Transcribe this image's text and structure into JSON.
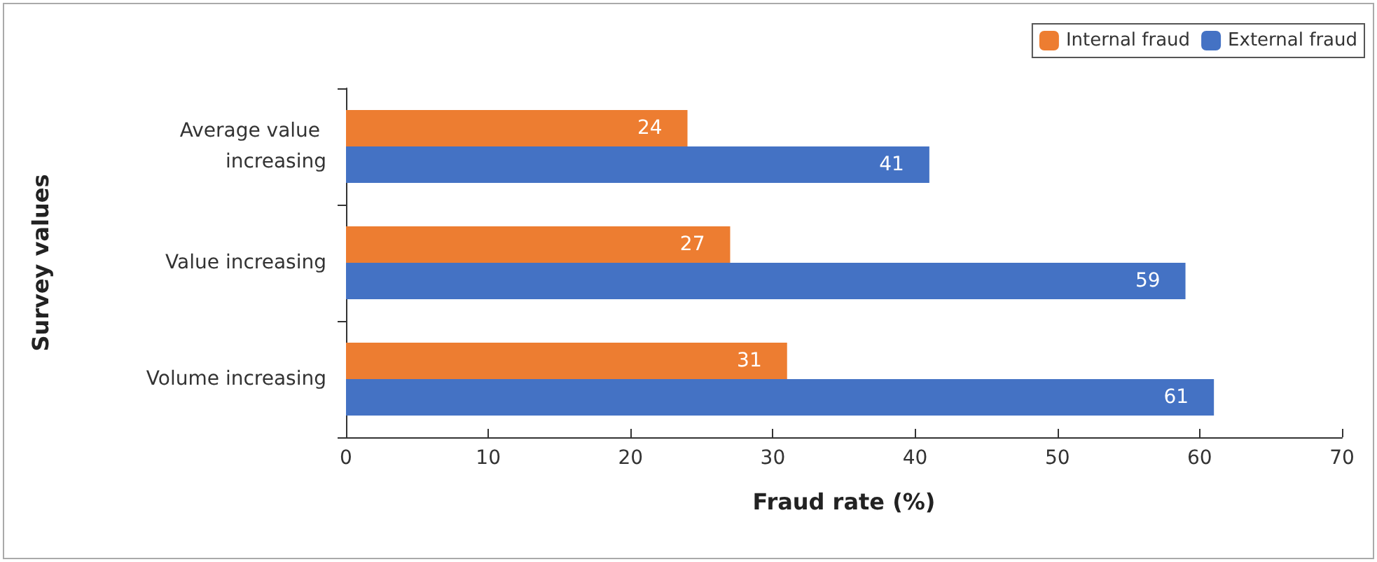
{
  "chart_data": {
    "type": "bar",
    "orientation": "horizontal",
    "xlabel": "Fraud rate (%)",
    "ylabel": "Survey values",
    "categories": [
      "Average value increasing",
      "Value increasing",
      "Volume increasing"
    ],
    "series": [
      {
        "name": "Internal fraud",
        "color": "#ed7d31",
        "values": [
          24,
          27,
          31
        ]
      },
      {
        "name": "External fraud",
        "color": "#4472c4",
        "values": [
          41,
          59,
          61
        ]
      }
    ],
    "xlim": [
      0,
      70
    ],
    "xticks": [
      0,
      10,
      20,
      30,
      40,
      50,
      60,
      70
    ],
    "data_labels": true,
    "legend": "top right",
    "grid": false
  }
}
